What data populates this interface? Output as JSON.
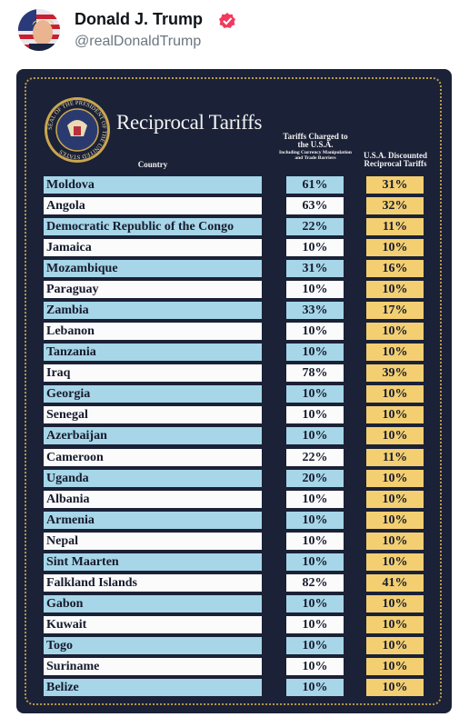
{
  "post": {
    "name": "Donald J. Trump",
    "handle": "@realDonaldTrump"
  },
  "table": {
    "seal_text": "SEAL OF THE PRESIDENT OF THE UNITED STATES",
    "title": "Reciprocal Tariffs",
    "headers": [
      "Country",
      "Tariffs Charged to the U.S.A.",
      "U.S.A. Discounted Reciprocal Tariffs"
    ],
    "header_note": "Including Currency Manipulation and Trade Barriers",
    "rows": [
      [
        "Moldova",
        "61%",
        "31%"
      ],
      [
        "Angola",
        "63%",
        "32%"
      ],
      [
        "Democratic Republic of the Congo",
        "22%",
        "11%"
      ],
      [
        "Jamaica",
        "10%",
        "10%"
      ],
      [
        "Mozambique",
        "31%",
        "16%"
      ],
      [
        "Paraguay",
        "10%",
        "10%"
      ],
      [
        "Zambia",
        "33%",
        "17%"
      ],
      [
        "Lebanon",
        "10%",
        "10%"
      ],
      [
        "Tanzania",
        "10%",
        "10%"
      ],
      [
        "Iraq",
        "78%",
        "39%"
      ],
      [
        "Georgia",
        "10%",
        "10%"
      ],
      [
        "Senegal",
        "10%",
        "10%"
      ],
      [
        "Azerbaijan",
        "10%",
        "10%"
      ],
      [
        "Cameroon",
        "22%",
        "11%"
      ],
      [
        "Uganda",
        "20%",
        "10%"
      ],
      [
        "Albania",
        "10%",
        "10%"
      ],
      [
        "Armenia",
        "10%",
        "10%"
      ],
      [
        "Nepal",
        "10%",
        "10%"
      ],
      [
        "Sint Maarten",
        "10%",
        "10%"
      ],
      [
        "Falkland Islands",
        "82%",
        "41%"
      ],
      [
        "Gabon",
        "10%",
        "10%"
      ],
      [
        "Kuwait",
        "10%",
        "10%"
      ],
      [
        "Togo",
        "10%",
        "10%"
      ],
      [
        "Suriname",
        "10%",
        "10%"
      ],
      [
        "Belize",
        "10%",
        "10%"
      ]
    ]
  }
}
